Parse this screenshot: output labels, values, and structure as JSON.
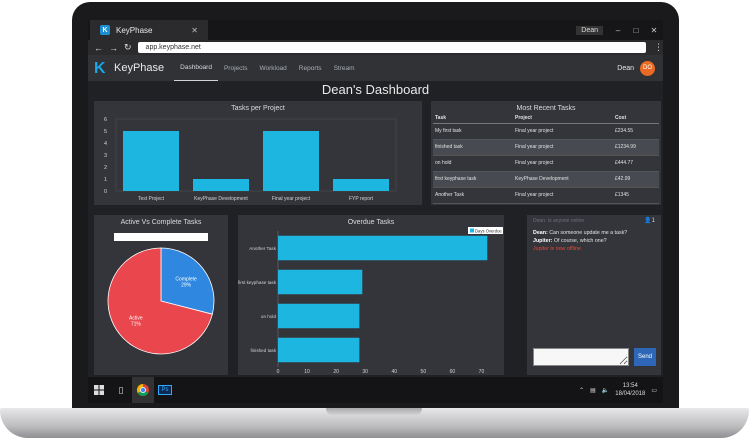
{
  "browser": {
    "tab_title": "KeyPhase",
    "tab_logo": "K",
    "window_user": "Dean",
    "url": "app.keyphase.net"
  },
  "nav": {
    "brand_letter": "K",
    "brand": "KeyPhase",
    "links": [
      "Dashboard",
      "Projects",
      "Workload",
      "Reports",
      "Stream"
    ],
    "user": "Dean",
    "avatar_initials": "DO"
  },
  "page": {
    "title": "Dean's Dashboard"
  },
  "tasks_per_project": {
    "title": "Tasks per Project",
    "chart_data": {
      "type": "bar",
      "categories": [
        "Test Project",
        "KeyPhase Development",
        "Final year project",
        "FYP report"
      ],
      "values": [
        5,
        1,
        5,
        1
      ],
      "ylim": [
        0,
        6
      ],
      "yticks": [
        "0",
        "1",
        "2",
        "3",
        "4",
        "5",
        "6"
      ],
      "color": "#1db6e0"
    }
  },
  "recent_tasks": {
    "title": "Most Recent Tasks",
    "columns": [
      "Task",
      "Project",
      "Cost"
    ],
    "rows": [
      {
        "task": "My first task",
        "project": "Final year project",
        "cost": "£234.55"
      },
      {
        "task": "finished task",
        "project": "Final year project",
        "cost": "£1234.99"
      },
      {
        "task": "on hold",
        "project": "Final year project",
        "cost": "£444.77"
      },
      {
        "task": "first keyphase task",
        "project": "KeyPhase Development",
        "cost": "£42.99"
      },
      {
        "task": "Another Task",
        "project": "Final year project",
        "cost": "£1345"
      }
    ]
  },
  "active_vs_complete": {
    "title": "Active Vs Complete Tasks",
    "chart_data": {
      "type": "pie",
      "labels": [
        "Active",
        "Complete"
      ],
      "values": [
        71,
        29
      ],
      "value_labels": [
        "71%",
        "29%"
      ],
      "colors": [
        "#e9464d",
        "#2f87e0"
      ]
    }
  },
  "overdue_tasks": {
    "title": "Overdue Tasks",
    "legend": "Days Overdue",
    "chart_data": {
      "type": "bar",
      "orientation": "horizontal",
      "categories": [
        "Another Task",
        "first keyphase task",
        "on hold",
        "finished task"
      ],
      "values": [
        72,
        29,
        28,
        28
      ],
      "xlim": [
        0,
        75
      ],
      "xticks": [
        "0",
        "10",
        "20",
        "30",
        "40",
        "50",
        "60",
        "70"
      ],
      "color": "#1db6e0"
    }
  },
  "chat": {
    "header": "Dean: Is anyone online",
    "online_count": "1",
    "messages": [
      {
        "user": "Dean:",
        "text": " Can someone update me a task?"
      },
      {
        "user": "Jupiter:",
        "text": " Of course, which one?"
      }
    ],
    "system_message": "Jupiter is now offline",
    "input_placeholder": "",
    "send_label": "Send"
  },
  "taskbar": {
    "time": "13:54",
    "date": "18/04/2018",
    "ps_label": "Ps"
  }
}
